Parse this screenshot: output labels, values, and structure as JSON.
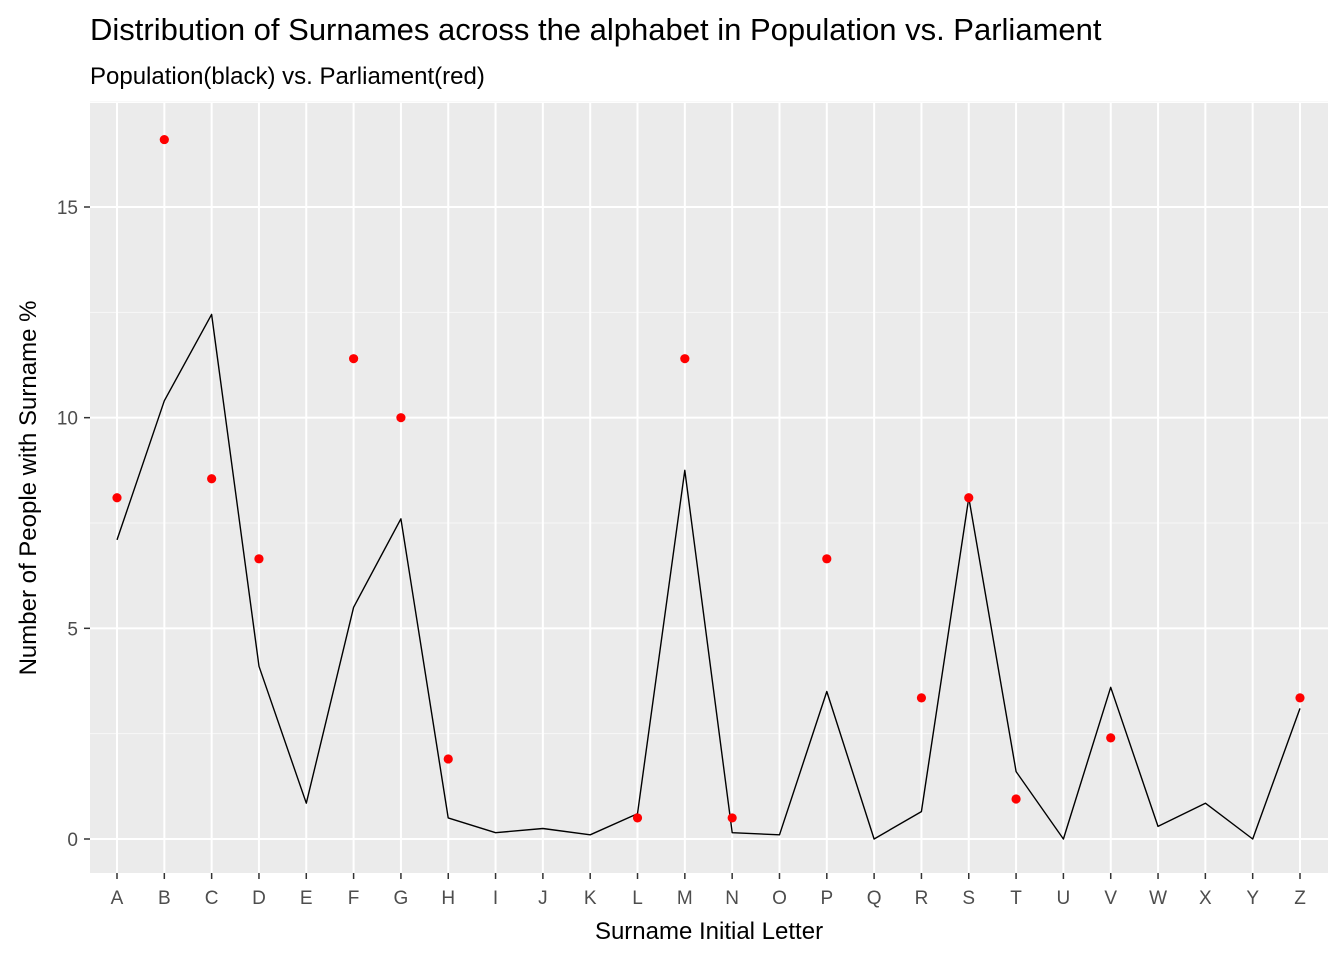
{
  "chart_data": {
    "type": "line",
    "title": "Distribution of Surnames across the alphabet in Population vs. Parliament",
    "subtitle": "Population(black) vs. Parliament(red)",
    "xlabel": "Surname Initial Letter",
    "ylabel": "Number of People with Surname %",
    "ylim": [
      -0.8,
      17.4
    ],
    "yticks": [
      "0",
      "5",
      "10",
      "15"
    ],
    "grid": true,
    "categories": [
      "A",
      "B",
      "C",
      "D",
      "E",
      "F",
      "G",
      "H",
      "I",
      "J",
      "K",
      "L",
      "M",
      "N",
      "O",
      "P",
      "Q",
      "R",
      "S",
      "T",
      "U",
      "V",
      "W",
      "X",
      "Y",
      "Z"
    ],
    "series": [
      {
        "kind": "line",
        "color": "#000000",
        "values": [
          7.1,
          10.4,
          12.45,
          4.1,
          0.85,
          5.5,
          7.6,
          0.5,
          0.15,
          0.25,
          0.1,
          0.6,
          8.75,
          0.15,
          0.1,
          3.5,
          0.0,
          0.65,
          8.1,
          1.6,
          0.0,
          3.6,
          0.3,
          0.85,
          0.0,
          3.1
        ]
      },
      {
        "kind": "points",
        "color": "#ff0000",
        "points": [
          {
            "x": "A",
            "y": 8.1
          },
          {
            "x": "B",
            "y": 16.6
          },
          {
            "x": "C",
            "y": 8.55
          },
          {
            "x": "D",
            "y": 6.65
          },
          {
            "x": "F",
            "y": 11.4
          },
          {
            "x": "G",
            "y": 10.0
          },
          {
            "x": "H",
            "y": 1.9
          },
          {
            "x": "L",
            "y": 0.5
          },
          {
            "x": "M",
            "y": 11.4
          },
          {
            "x": "N",
            "y": 0.5
          },
          {
            "x": "P",
            "y": 6.65
          },
          {
            "x": "R",
            "y": 3.35
          },
          {
            "x": "S",
            "y": 8.1
          },
          {
            "x": "T",
            "y": 0.95
          },
          {
            "x": "V",
            "y": 2.4
          },
          {
            "x": "Z",
            "y": 3.35
          }
        ]
      }
    ]
  }
}
